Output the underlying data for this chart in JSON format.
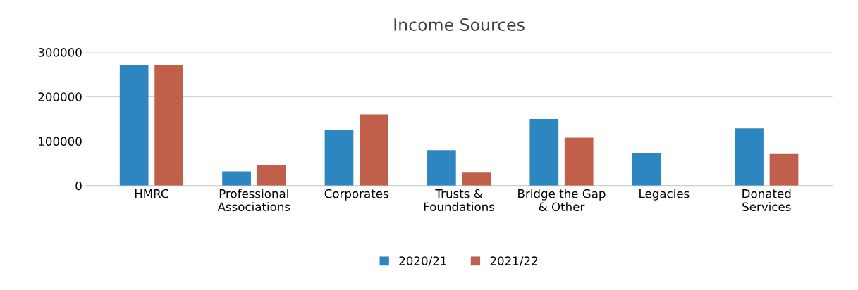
{
  "chart_data": {
    "type": "bar",
    "title": "Income Sources",
    "categories": [
      "HMRC",
      "Professional\nAssociations",
      "Corporates",
      "Trusts &\nFoundations",
      "Bridge the Gap\n& Other",
      "Legacies",
      "Donated\nServices"
    ],
    "series": [
      {
        "name": "2020/21",
        "color": "#2e86c1",
        "values": [
          270000,
          32000,
          126000,
          80000,
          150000,
          73000,
          129000
        ]
      },
      {
        "name": "2021/22",
        "color": "#c0604a",
        "values": [
          270000,
          47000,
          160000,
          29000,
          108000,
          0,
          71000
        ]
      }
    ],
    "ylim": [
      0,
      300000
    ],
    "yticks": [
      0,
      100000,
      200000,
      300000
    ],
    "grid": "y",
    "legend": "bottom"
  }
}
